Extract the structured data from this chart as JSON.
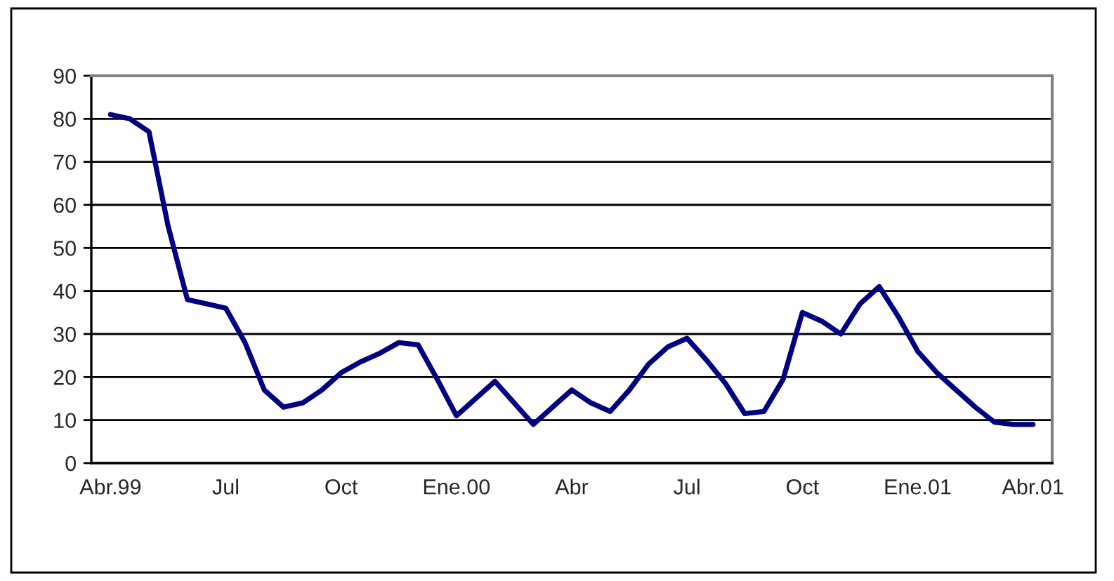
{
  "chart_data": {
    "type": "line",
    "categories": [
      "Abr.99",
      null,
      null,
      null,
      null,
      null,
      "Jul",
      null,
      null,
      null,
      null,
      null,
      "Oct",
      null,
      null,
      null,
      null,
      null,
      "Ene.00",
      null,
      null,
      null,
      null,
      null,
      "Abr",
      null,
      null,
      null,
      null,
      null,
      "Jul",
      null,
      null,
      null,
      null,
      null,
      "Oct",
      null,
      null,
      null,
      null,
      null,
      "Ene.01",
      null,
      null,
      null,
      null,
      null,
      "Abr.01"
    ],
    "series": [
      {
        "color": "#000080",
        "values": [
          81,
          80,
          77,
          55,
          38,
          37,
          36,
          28,
          17,
          13,
          14,
          17,
          21,
          23.5,
          25.5,
          28,
          27.5,
          19.5,
          11,
          15,
          19,
          14,
          9,
          13,
          17,
          14,
          12,
          17,
          23,
          27,
          29,
          24,
          18.5,
          11.5,
          12,
          19.5,
          35,
          33,
          30,
          37,
          41,
          34,
          26,
          21,
          17,
          13,
          9.5,
          9,
          9
        ]
      }
    ],
    "ylim": [
      0,
      90
    ],
    "yticks": [
      0,
      10,
      20,
      30,
      40,
      50,
      60,
      70,
      80,
      90
    ],
    "grid": "y",
    "legend": false,
    "marker": "none",
    "line_style": "solid"
  }
}
